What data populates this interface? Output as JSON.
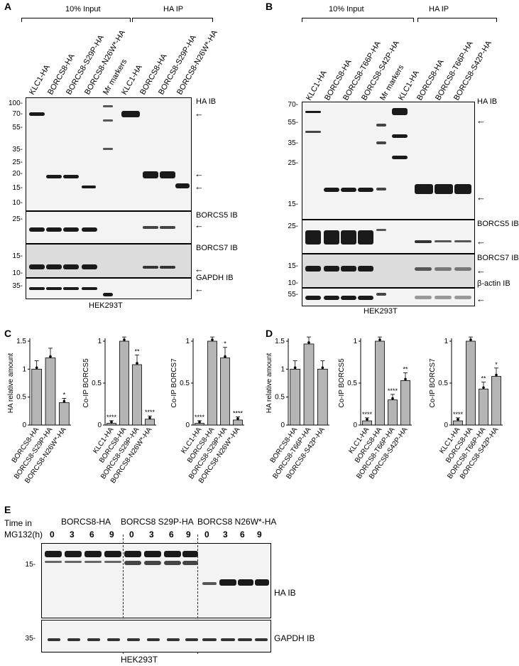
{
  "panelA": {
    "letter": "A",
    "group1": "10% Input",
    "group2": "HA IP",
    "lanes": [
      "KLC1-HA",
      "BORCS8-HA",
      "BORCS8-S29P-HA",
      "BORCS8-N26W*-HA",
      "Mr markers",
      "KLC1-HA",
      "BORCS8-HA",
      "BORCS8-S29P-HA",
      "BORCS8-N26W*-HA"
    ],
    "blots": [
      "HA IB",
      "BORCS5 IB",
      "BORCS7 IB",
      "GAPDH IB"
    ],
    "mw_ha": [
      "100-",
      "70-",
      "55-",
      "35-",
      "25-",
      "20-",
      "15-",
      "10-"
    ],
    "mw_b5": [
      "25-"
    ],
    "mw_b7": [
      "15-",
      "10-"
    ],
    "mw_gapdh": [
      "35-"
    ],
    "cell": "HEK293T"
  },
  "panelB": {
    "letter": "B",
    "group1": "10% Input",
    "group2": "HA IP",
    "lanes": [
      "KLC1-HA",
      "BORCS8-HA",
      "BORCS8-T66P-HA",
      "BORCS8-S42P-HA",
      "Mr markers",
      "KLC1-HA",
      "BORCS8-HA",
      "BORCS8-T66P-HA",
      "BORCS8-S42P-HA"
    ],
    "blots": [
      "HA IB",
      "BORCS5 IB",
      "BORCS7 IB",
      "β-actin IB"
    ],
    "mw_ha": [
      "70-",
      "55-",
      "35-",
      "25-",
      "15-"
    ],
    "mw_b5": [
      "25-"
    ],
    "mw_b7": [
      "15-",
      "10-"
    ],
    "mw_actin": [
      "55-"
    ],
    "cell": "HEK293T"
  },
  "panelC": {
    "letter": "C",
    "chart_data": [
      {
        "type": "bar",
        "ylabel": "HA relative amount",
        "categories": [
          "BORCS8-HA",
          "BORCS8-S29P-HA",
          "BORCS8-N26W*-HA"
        ],
        "values": [
          1.0,
          1.2,
          0.4
        ],
        "ylim": [
          0,
          1.5
        ],
        "ticks": [
          "0",
          "0.5",
          "1",
          "1.5"
        ],
        "sig": [
          "",
          "",
          "*"
        ]
      },
      {
        "type": "bar",
        "ylabel": "Co-IP BORCS5",
        "categories": [
          "KLC1-HA",
          "BORCS8-HA",
          "BORCS8-S29P-HA",
          "BORCS8-N26W*-HA"
        ],
        "values": [
          0.02,
          1.0,
          0.72,
          0.07
        ],
        "ylim": [
          0,
          1
        ],
        "ticks": [
          "0",
          "0.5",
          "1"
        ],
        "sig": [
          "****",
          "",
          "**",
          "****"
        ]
      },
      {
        "type": "bar",
        "ylabel": "Co-IP BORCS7",
        "categories": [
          "KLC1-HA",
          "BORCS8-HA",
          "BORCS8-S29P-HA",
          "BORCS8-N26W*-HA"
        ],
        "values": [
          0.02,
          1.0,
          0.8,
          0.06
        ],
        "ylim": [
          0,
          1
        ],
        "ticks": [
          "0",
          "0.5",
          "1"
        ],
        "sig": [
          "****",
          "",
          "*",
          "****"
        ]
      }
    ]
  },
  "panelD": {
    "letter": "D",
    "chart_data": [
      {
        "type": "bar",
        "ylabel": "HA relative amount",
        "categories": [
          "BORCS8-HA",
          "BORCS8-T66P-HA",
          "BORCS8-S42P-HA"
        ],
        "values": [
          1.0,
          1.45,
          1.0
        ],
        "ylim": [
          0,
          1.5
        ],
        "ticks": [
          "0",
          "0.5",
          "1",
          "1.5"
        ],
        "sig": [
          "",
          "",
          ""
        ]
      },
      {
        "type": "bar",
        "ylabel": "Co-IP BORCS5",
        "categories": [
          "KLC1-HA",
          "BORCS8-HA",
          "BORCS8-T66P-HA",
          "BORCS8-S42P-HA"
        ],
        "values": [
          0.05,
          1.0,
          0.3,
          0.53
        ],
        "ylim": [
          0,
          1
        ],
        "ticks": [
          "0",
          "0.5",
          "1"
        ],
        "sig": [
          "****",
          "",
          "****",
          "**"
        ]
      },
      {
        "type": "bar",
        "ylabel": "Co-IP BORCS7",
        "categories": [
          "KLC1-HA",
          "BORCS8-HA",
          "BORCS8-T66P-HA",
          "BORCS8-S42P-HA"
        ],
        "values": [
          0.05,
          1.0,
          0.43,
          0.58
        ],
        "ylim": [
          0,
          1
        ],
        "ticks": [
          "0",
          "0.5",
          "1"
        ],
        "sig": [
          "****",
          "",
          "**",
          "*"
        ]
      }
    ]
  },
  "panelE": {
    "letter": "E",
    "time_label_1": "Time in",
    "time_label_2": "MG132(h)",
    "groups": [
      "BORCS8-HA",
      "BORCS8 S29P-HA",
      "BORCS8 N26W*-HA"
    ],
    "times": [
      "0",
      "3",
      "6",
      "9",
      "0",
      "3",
      "6",
      "9",
      "0",
      "3",
      "6",
      "9"
    ],
    "blots": [
      "HA IB",
      "GAPDH IB"
    ],
    "mw_ha": [
      "15-"
    ],
    "mw_gapdh": [
      "35-"
    ],
    "cell": "HEK293T"
  }
}
